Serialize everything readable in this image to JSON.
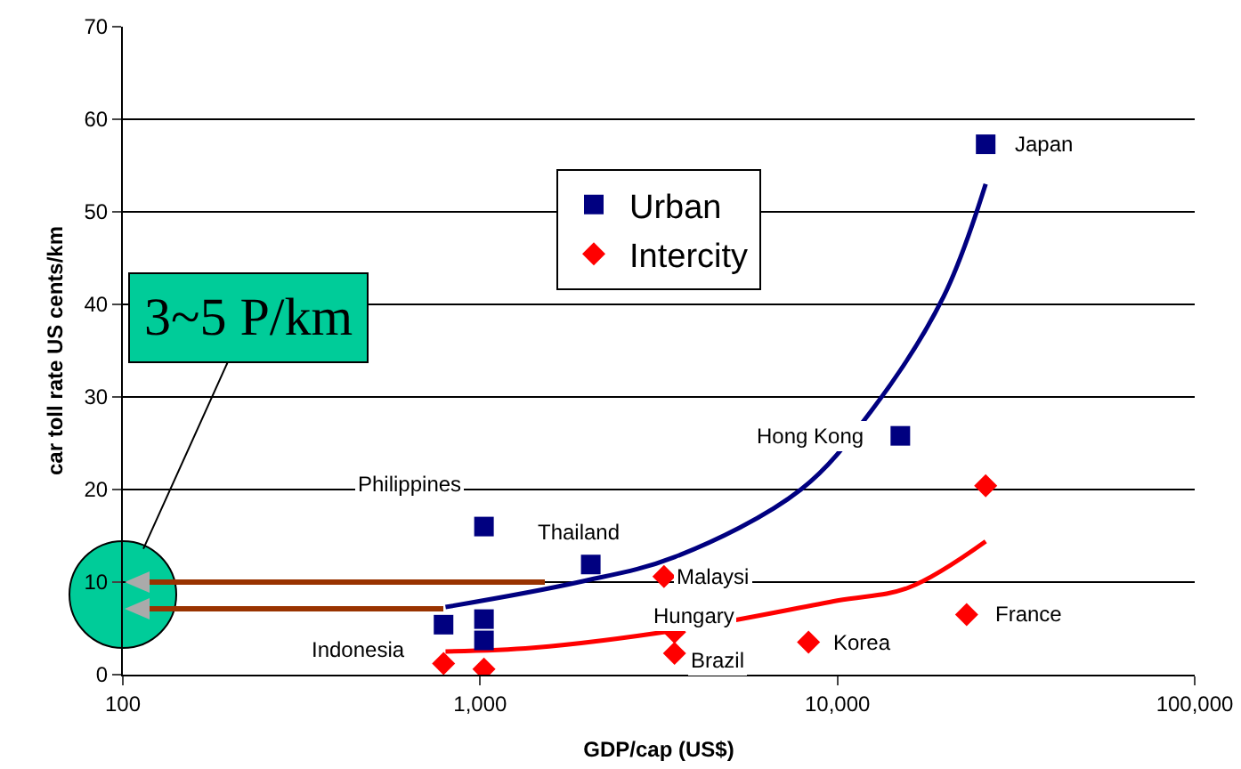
{
  "chart_data": {
    "type": "scatter",
    "xlabel": "GDP/cap (US$)",
    "ylabel": "car toll rate US cents/km",
    "log": "x",
    "xlim": [
      100,
      100000
    ],
    "xticks": [
      {
        "value": 100,
        "label": "100"
      },
      {
        "value": 1000,
        "label": "1,000"
      },
      {
        "value": 10000,
        "label": "10,000"
      },
      {
        "value": 100000,
        "label": "100,000"
      }
    ],
    "ylim": [
      0,
      70
    ],
    "yticks": [
      0,
      10,
      20,
      30,
      40,
      50,
      60,
      70
    ],
    "grid": "y",
    "legend": "top",
    "series": [
      {
        "name": "Urban",
        "marker": "square",
        "color": "#000080",
        "x": [
          790,
          1025,
          1025,
          1025,
          2040,
          15000,
          26000
        ],
        "values": [
          5.4,
          16,
          6,
          3.7,
          11.9,
          25.8,
          57.3
        ]
      },
      {
        "name": "Intercity",
        "marker": "diamond",
        "color": "#ff0000",
        "x": [
          790,
          1025,
          3270,
          3500,
          3500,
          8300,
          23000,
          26000
        ],
        "values": [
          1.2,
          0.6,
          10.6,
          4.6,
          2.3,
          3.5,
          6.5,
          20.4
        ]
      },
      {
        "type": "line",
        "marker": "none",
        "color": "#000080",
        "x": [
          800,
          1890,
          3500,
          7900,
          12500,
          19800,
          26000
        ],
        "values": [
          7.3,
          10,
          12.7,
          20,
          28.6,
          40.8,
          53
        ]
      },
      {
        "type": "line",
        "marker": "none",
        "color": "#ff0000",
        "x": [
          800,
          1410,
          3550,
          10000,
          15800,
          26000
        ],
        "values": [
          2.5,
          2.9,
          4.8,
          8,
          9.4,
          14.4
        ]
      }
    ],
    "annotations": [
      "3~5 P/km",
      {
        "text": "Japan",
        "x": 26000,
        "y": 57.3
      },
      {
        "text": "Hong Kong",
        "x": 15000,
        "y": 25.8
      },
      {
        "text": "Philippines",
        "x": 1025,
        "y": 16
      },
      {
        "text": "Thailand",
        "x": 2040,
        "y": 11.9
      },
      {
        "text": "Malaysi",
        "x": 3270,
        "y": 10.6
      },
      {
        "text": "Hungary",
        "x": 3500,
        "y": 4.6
      },
      {
        "text": "Brazil",
        "x": 3500,
        "y": 2.3
      },
      {
        "text": "Korea",
        "x": 8300,
        "y": 3.5
      },
      {
        "text": "France",
        "x": 23000,
        "y": 6.5
      },
      {
        "text": "Indonesia",
        "x": 790,
        "y": 5.4
      }
    ]
  }
}
